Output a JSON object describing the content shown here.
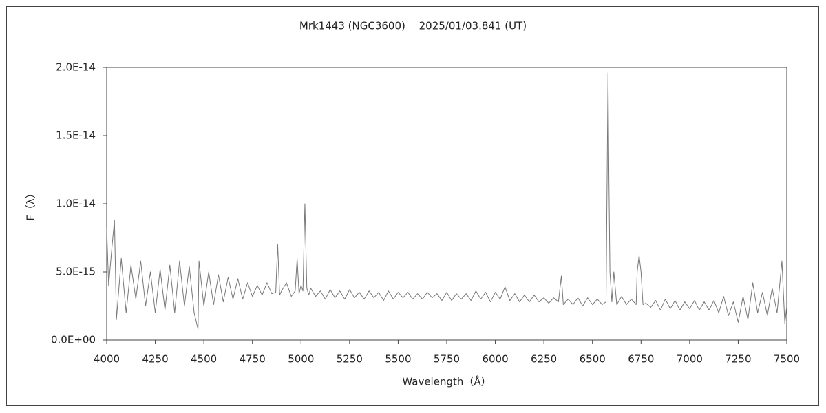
{
  "chart_data": {
    "type": "line",
    "title": "Mrk1443 (NGC3600)　 2025/01/03.841 (UT)",
    "x_label": "Wavelength（Å）",
    "y_label": "F（λ）",
    "color": "#777777",
    "xlim": [
      4000,
      7500
    ],
    "xticks": [
      4000,
      4250,
      4500,
      4750,
      5000,
      5250,
      5500,
      5750,
      6000,
      6250,
      6500,
      6750,
      7000,
      7250,
      7500
    ],
    "ylim": [
      0,
      2e-14
    ],
    "yticks": [
      {
        "value": 0,
        "label": "0.0E+00"
      },
      {
        "value": 5e-15,
        "label": "5.0E-15"
      },
      {
        "value": 1e-14,
        "label": "1.0E-14"
      },
      {
        "value": 1.5e-14,
        "label": "1.5E-14"
      },
      {
        "value": 2e-14,
        "label": "2.0E-14"
      }
    ],
    "grid": false,
    "x": [
      4000,
      4010,
      4025,
      4040,
      4050,
      4075,
      4100,
      4125,
      4150,
      4175,
      4200,
      4225,
      4250,
      4275,
      4300,
      4325,
      4350,
      4375,
      4400,
      4425,
      4450,
      4470,
      4475,
      4500,
      4525,
      4550,
      4575,
      4600,
      4625,
      4650,
      4675,
      4700,
      4725,
      4750,
      4775,
      4800,
      4825,
      4850,
      4870,
      4880,
      4890,
      4900,
      4925,
      4950,
      4970,
      4980,
      4990,
      5000,
      5010,
      5020,
      5030,
      5040,
      5050,
      5075,
      5100,
      5125,
      5150,
      5175,
      5200,
      5225,
      5250,
      5275,
      5300,
      5325,
      5350,
      5375,
      5400,
      5425,
      5450,
      5475,
      5500,
      5525,
      5550,
      5575,
      5600,
      5625,
      5650,
      5675,
      5700,
      5725,
      5750,
      5775,
      5800,
      5825,
      5850,
      5875,
      5900,
      5925,
      5950,
      5975,
      6000,
      6025,
      6050,
      6075,
      6100,
      6125,
      6150,
      6175,
      6200,
      6225,
      6250,
      6275,
      6300,
      6325,
      6340,
      6350,
      6375,
      6400,
      6425,
      6450,
      6475,
      6500,
      6525,
      6550,
      6570,
      6580,
      6585,
      6590,
      6600,
      6610,
      6625,
      6650,
      6675,
      6700,
      6725,
      6730,
      6740,
      6750,
      6760,
      6775,
      6800,
      6825,
      6850,
      6875,
      6900,
      6925,
      6950,
      6975,
      7000,
      7025,
      7050,
      7075,
      7100,
      7125,
      7150,
      7175,
      7200,
      7225,
      7250,
      7275,
      7300,
      7325,
      7350,
      7375,
      7400,
      7425,
      7450,
      7475,
      7490,
      7500
    ],
    "values": [
      8.2e-15,
      4e-15,
      6.5e-15,
      8.8e-15,
      1.5e-15,
      6e-15,
      2e-15,
      5.5e-15,
      3e-15,
      5.8e-15,
      2.5e-15,
      5e-15,
      2e-15,
      5.2e-15,
      2.2e-15,
      5.5e-15,
      2e-15,
      5.8e-15,
      2.5e-15,
      5.4e-15,
      2e-15,
      8e-16,
      5.8e-15,
      2.5e-15,
      5e-15,
      2.6e-15,
      4.8e-15,
      2.8e-15,
      4.6e-15,
      3e-15,
      4.5e-15,
      3e-15,
      4.2e-15,
      3.2e-15,
      4e-15,
      3.3e-15,
      4.2e-15,
      3.4e-15,
      3.5e-15,
      7e-15,
      3.3e-15,
      3.6e-15,
      4.2e-15,
      3.2e-15,
      3.6e-15,
      6e-15,
      3.4e-15,
      4e-15,
      3.6e-15,
      1e-14,
      3.8e-15,
      3.3e-15,
      3.8e-15,
      3.2e-15,
      3.6e-15,
      3e-15,
      3.7e-15,
      3.1e-15,
      3.6e-15,
      3e-15,
      3.7e-15,
      3.1e-15,
      3.5e-15,
      3e-15,
      3.6e-15,
      3.1e-15,
      3.5e-15,
      2.9e-15,
      3.6e-15,
      3e-15,
      3.5e-15,
      3.1e-15,
      3.5e-15,
      3e-15,
      3.4e-15,
      3e-15,
      3.5e-15,
      3.1e-15,
      3.4e-15,
      2.9e-15,
      3.5e-15,
      2.9e-15,
      3.4e-15,
      3e-15,
      3.4e-15,
      2.9e-15,
      3.6e-15,
      3e-15,
      3.5e-15,
      2.8e-15,
      3.5e-15,
      3e-15,
      3.9e-15,
      2.9e-15,
      3.4e-15,
      2.8e-15,
      3.3e-15,
      2.8e-15,
      3.3e-15,
      2.8e-15,
      3.1e-15,
      2.7e-15,
      3.1e-15,
      2.8e-15,
      4.7e-15,
      2.6e-15,
      3e-15,
      2.6e-15,
      3.1e-15,
      2.5e-15,
      3.1e-15,
      2.6e-15,
      3e-15,
      2.6e-15,
      2.8e-15,
      1.96e-14,
      1.14e-14,
      5e-15,
      2.8e-15,
      5e-15,
      2.6e-15,
      3.2e-15,
      2.6e-15,
      3e-15,
      2.6e-15,
      5e-15,
      6.2e-15,
      5e-15,
      2.6e-15,
      2.7e-15,
      2.4e-15,
      2.9e-15,
      2.2e-15,
      3e-15,
      2.3e-15,
      2.9e-15,
      2.2e-15,
      2.8e-15,
      2.3e-15,
      2.9e-15,
      2.2e-15,
      2.8e-15,
      2.2e-15,
      2.9e-15,
      2e-15,
      3.2e-15,
      1.8e-15,
      2.8e-15,
      1.3e-15,
      3.2e-15,
      1.5e-15,
      4.2e-15,
      2e-15,
      3.5e-15,
      1.8e-15,
      3.8e-15,
      2e-15,
      5.8e-15,
      1.2e-15,
      2.5e-15
    ]
  }
}
